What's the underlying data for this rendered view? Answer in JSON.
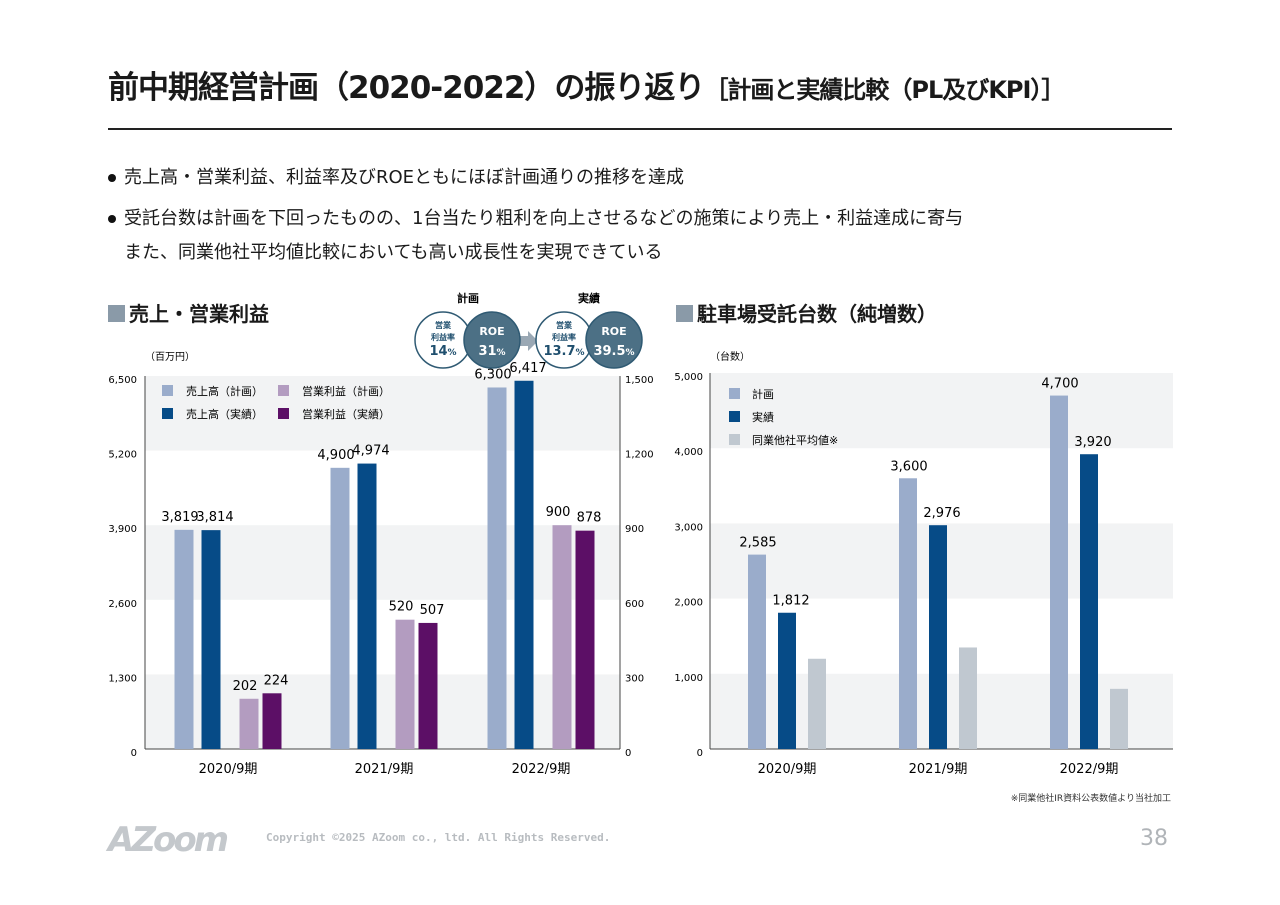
{
  "title": {
    "main": "前中期経営計画（2020-2022）の振り返り",
    "sub": "［計画と実績比較（PL及びKPI）］"
  },
  "bullets": [
    "売上高・営業利益、利益率及びROEともにほぼ計画通りの推移を達成",
    "受託台数は計画を下回ったものの、1台当たり粗利を向上させるなどの施策により売上・利益達成に寄与",
    "また、同業他社平均値比較においても高い成長性を実現できている"
  ],
  "kpi": {
    "plan_label": "計画",
    "actual_label": "実績",
    "margin_label_1": "営業",
    "margin_label_2": "利益率",
    "roe_label": "ROE",
    "plan_margin": "14",
    "plan_roe": "31",
    "actual_margin": "13.7",
    "actual_roe": "39.5",
    "unit": "%"
  },
  "chart_data": [
    {
      "type": "bar",
      "title": "売上・営業利益",
      "unit_label": "（百万円）",
      "categories": [
        "2020/9期",
        "2021/9期",
        "2022/9期"
      ],
      "ylim_left": [
        0,
        6500
      ],
      "ylim_right": [
        0,
        1500
      ],
      "yticks_left": [
        "0",
        "1,300",
        "2,600",
        "3,900",
        "5,200",
        "6,500"
      ],
      "yticks_right": [
        "0",
        "300",
        "600",
        "900",
        "1,200",
        "1,500"
      ],
      "legend_placement": "top-left",
      "series": [
        {
          "name": "売上高（計画）",
          "axis": "left",
          "color": "#9aaccb",
          "values": [
            3819,
            4900,
            6300
          ],
          "labels": [
            "3,819",
            "4,900",
            "6,300"
          ]
        },
        {
          "name": "売上高（実績）",
          "axis": "left",
          "color": "#064b87",
          "values": [
            3814,
            4974,
            6417
          ],
          "labels": [
            "3,814",
            "4,974",
            "6,417"
          ]
        },
        {
          "name": "営業利益（計画）",
          "axis": "right",
          "color": "#b39cc0",
          "values": [
            202,
            520,
            900
          ],
          "labels": [
            "202",
            "520",
            "900"
          ]
        },
        {
          "name": "営業利益（実績）",
          "axis": "right",
          "color": "#5c0f66",
          "values": [
            224,
            507,
            878
          ],
          "labels": [
            "224",
            "507",
            "878"
          ]
        }
      ]
    },
    {
      "type": "bar",
      "title": "駐車場受託台数（純増数）",
      "unit_label": "（台数）",
      "categories": [
        "2020/9期",
        "2021/9期",
        "2022/9期"
      ],
      "ylim": [
        0,
        5000
      ],
      "yticks": [
        "0",
        "1,000",
        "2,000",
        "3,000",
        "4,000",
        "5,000"
      ],
      "legend_placement": "top-left",
      "series": [
        {
          "name": "計画",
          "color": "#9aaccb",
          "values": [
            2585,
            3600,
            4700
          ],
          "labels": [
            "2,585",
            "3,600",
            "4,700"
          ]
        },
        {
          "name": "実績",
          "color": "#064b87",
          "values": [
            1812,
            2976,
            3920
          ],
          "labels": [
            "1,812",
            "2,976",
            "3,920"
          ]
        },
        {
          "name": "同業他社平均値※",
          "color": "#c0c8d0",
          "values": [
            1200,
            1350,
            800
          ],
          "labels": []
        }
      ],
      "note": "※同業他社IR資料公表数値より当社加工"
    }
  ],
  "footer": {
    "logo": "AZoom",
    "copyright": "Copyright ©2025 AZoom co., ltd. All Rights Reserved.",
    "page": "38"
  }
}
